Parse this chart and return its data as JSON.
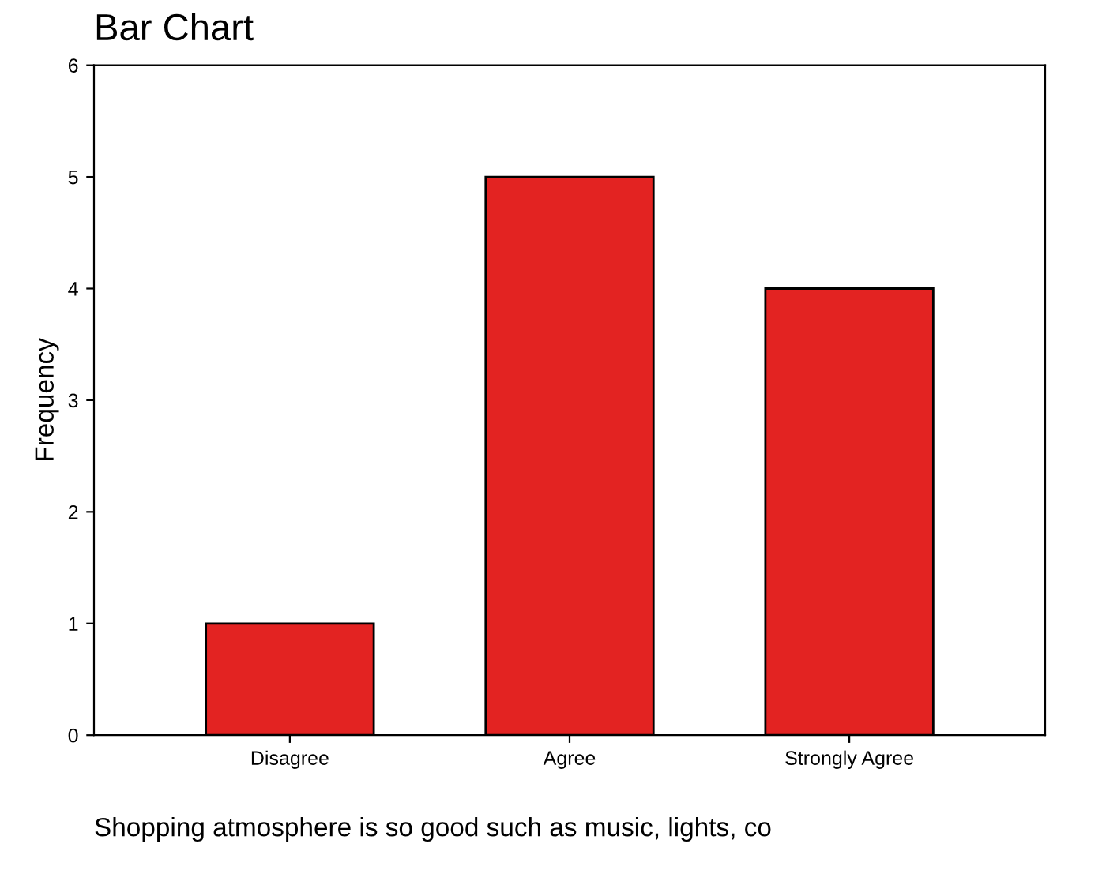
{
  "chart_data": {
    "type": "bar",
    "title": "Bar Chart",
    "categories": [
      "Disagree",
      "Agree",
      "Strongly Agree"
    ],
    "values": [
      1,
      5,
      4
    ],
    "color": "#e32322",
    "ylim": [
      0,
      6
    ],
    "yticks": [
      0,
      1,
      2,
      3,
      4,
      5,
      6
    ],
    "ylabel": "Frequency",
    "xlabel": "Shopping atmosphere is so good such as music, lights, co",
    "grid": false
  }
}
